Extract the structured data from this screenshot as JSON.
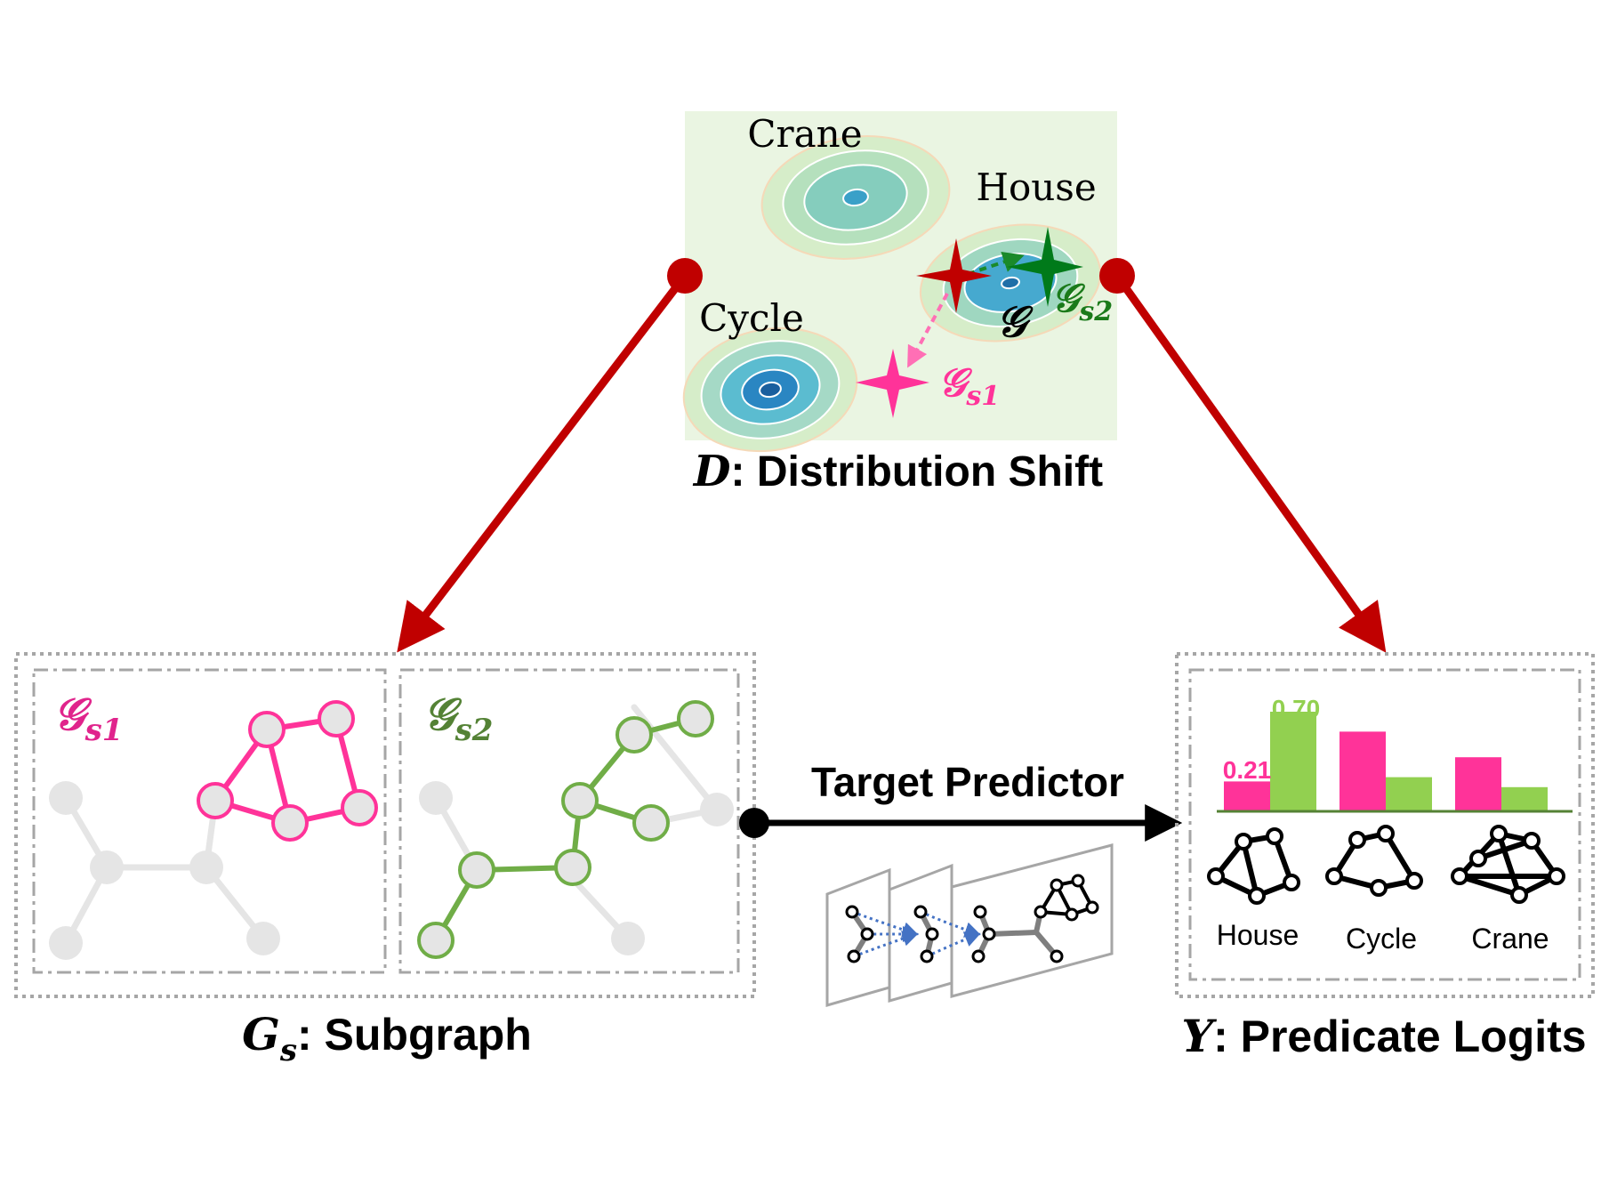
{
  "distribution": {
    "labels": {
      "crane": "Crane",
      "house": "House",
      "cycle": "Cycle"
    },
    "g": "𝒢",
    "gs1": "𝒢",
    "gs1_sub": "s1",
    "gs2": "𝒢",
    "gs2_sub": "s2",
    "caption_var": "D",
    "caption_text": ": Distribution Shift"
  },
  "subgraph": {
    "panel1_title": "𝒢",
    "panel1_sub": "s1",
    "panel2_title": "𝒢",
    "panel2_sub": "s2",
    "caption_var": "G",
    "caption_sub": "s",
    "caption_text": ": Subgraph"
  },
  "predictor": {
    "label": "Target Predictor"
  },
  "logits": {
    "caption_var": "Y",
    "caption_text": ": Predicate Logits",
    "label_pink": "0.21",
    "label_green": "0.70",
    "categories": [
      "House",
      "Cycle",
      "Crane"
    ]
  },
  "chart_data": {
    "type": "bar",
    "categories": [
      "House",
      "Cycle",
      "Crane"
    ],
    "series": [
      {
        "values": [
          0.21,
          0.56,
          0.38
        ]
      },
      {
        "values": [
          0.7,
          0.24,
          0.17
        ]
      }
    ],
    "data_labels": [
      "0.21",
      "0.70"
    ],
    "colors": {
      "pink": "#ff3399",
      "green": "#92d050"
    }
  },
  "colors": {
    "arrow_red": "#c00000",
    "pink": "#ff3399",
    "green": "#70ad47",
    "dark_green": "#007a1a",
    "gray_node": "#e5e5e5",
    "panel_border": "#a6a6a6",
    "blob_bg": "#eaf5e2"
  }
}
